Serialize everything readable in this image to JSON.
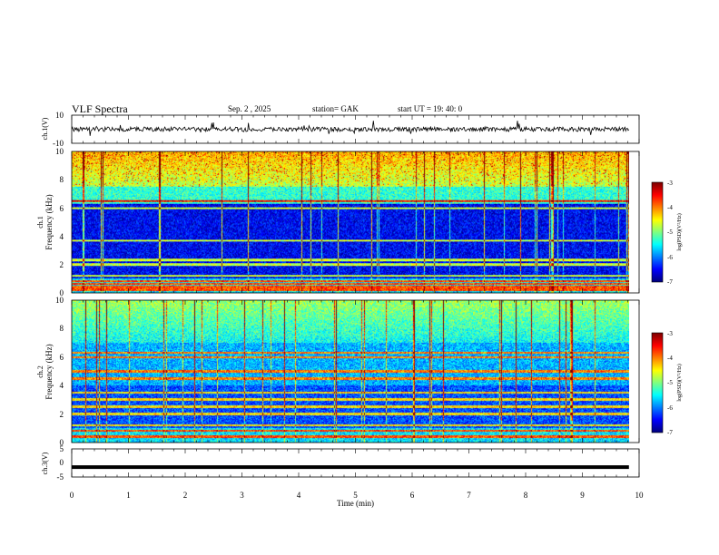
{
  "header": {
    "title": "VLF  Spectra",
    "date": "Sep. 2  , 2025",
    "station": "station= GAK",
    "start": "start  UT  =    19: 40: 0"
  },
  "chart_data": [
    {
      "type": "line",
      "name": "ch1-waveform",
      "ylabel": "ch.1(V)",
      "ylim": [
        -10,
        10
      ],
      "yticks": [
        "10",
        "-10"
      ],
      "xlim": [
        0,
        10
      ],
      "baseline": 0,
      "data_end_min": 9.82
    },
    {
      "type": "heatmap",
      "name": "ch1-spectrogram",
      "ylabel_channel": "ch.1",
      "ylabel": "Frequency  (kHz)",
      "ylim": [
        0,
        10
      ],
      "yticks": [
        "0",
        "2",
        "4",
        "6",
        "8",
        "10"
      ],
      "xlim": [
        0,
        10
      ],
      "data_end_min": 9.82,
      "lines_khz": [
        0.2,
        0.4,
        0.6,
        0.8,
        1.2,
        2.0,
        2.3,
        3.7,
        6.0,
        6.5
      ],
      "colorbar": {
        "label": "log(PSD)(V²/Hz)",
        "ticks": [
          "-3",
          "-4",
          "-5",
          "-6",
          "-7"
        ],
        "range": [
          -7,
          -3
        ]
      }
    },
    {
      "type": "heatmap",
      "name": "ch2-spectrogram",
      "ylabel_channel": "ch.2",
      "ylabel": "Frequency  (kHz)",
      "ylim": [
        0,
        10
      ],
      "yticks": [
        "0",
        "2",
        "4",
        "6",
        "8",
        "10"
      ],
      "xlim": [
        0,
        10
      ],
      "data_end_min": 9.82,
      "lines_khz": [
        0.4,
        0.8,
        1.2,
        2.0,
        2.5,
        3.0,
        3.5,
        4.5,
        5.0,
        6.0,
        6.3
      ],
      "colorbar": {
        "label": "log(PSD)(V²/Hz)",
        "ticks": [
          "-3",
          "-4",
          "-5",
          "-6",
          "-7"
        ],
        "range": [
          -7,
          -3
        ]
      }
    },
    {
      "type": "line",
      "name": "ch3-waveform",
      "ylabel": "ch.3(V)",
      "ylim": [
        -5,
        5
      ],
      "yticks": [
        "5",
        "0",
        "-5"
      ],
      "xlim": [
        0,
        10
      ],
      "baseline": -1.5,
      "data_end_min": 9.82
    }
  ],
  "xaxis": {
    "label": "Time  (min)",
    "ticks": [
      "0",
      "1",
      "2",
      "3",
      "4",
      "5",
      "6",
      "7",
      "8",
      "9",
      "10"
    ]
  }
}
